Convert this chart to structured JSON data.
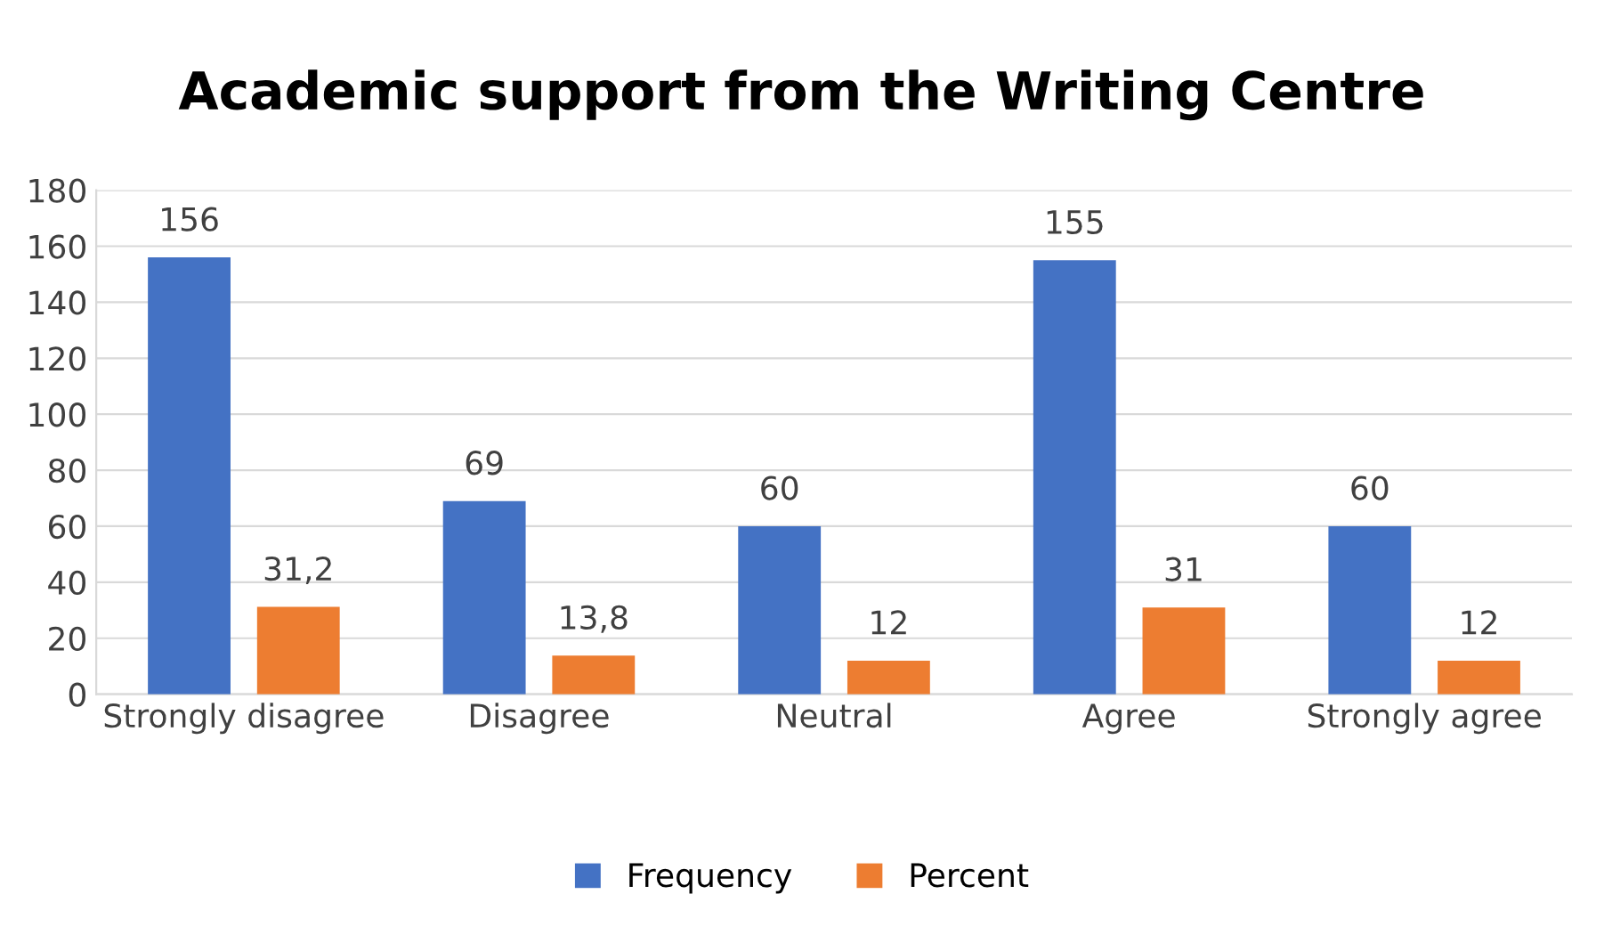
{
  "chart_data": {
    "type": "bar",
    "title": "Academic support from the Writing Centre",
    "categories": [
      "Strongly disagree",
      "Disagree",
      "Neutral",
      "Agree",
      "Strongly agree"
    ],
    "series": [
      {
        "name": "Frequency",
        "color": "#4472c4",
        "values": [
          156,
          69,
          60,
          155,
          60
        ],
        "value_labels": [
          "156",
          "69",
          "60",
          "155",
          "60"
        ]
      },
      {
        "name": "Percent",
        "color": "#ed7d31",
        "values": [
          31.2,
          13.8,
          12,
          31,
          12
        ],
        "value_labels": [
          "31,2",
          "13,8",
          "12",
          "31",
          "12"
        ]
      }
    ],
    "ylim": [
      0,
      180
    ],
    "yticks": [
      0,
      20,
      40,
      60,
      80,
      100,
      120,
      140,
      160,
      180
    ],
    "grid": "y",
    "legend": "bottom"
  }
}
